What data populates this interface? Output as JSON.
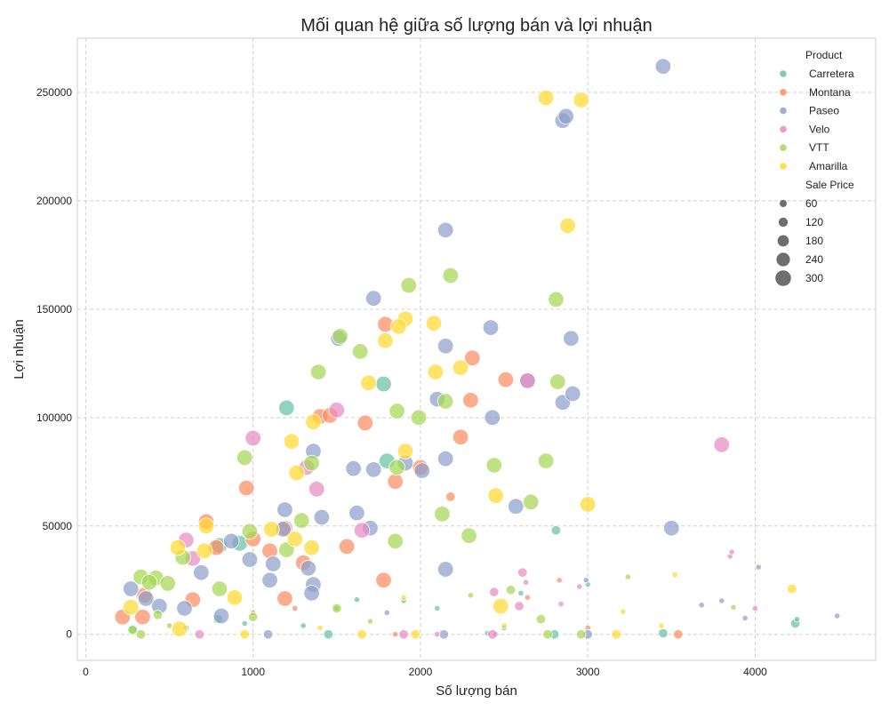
{
  "chart_data": {
    "type": "scatter",
    "title": "Mối quan hệ giữa số lượng bán và lợi nhuận",
    "xlabel": "Số lượng bán",
    "ylabel": "Lợi nhuận",
    "xlim": [
      -50,
      4720
    ],
    "ylim": [
      -12000,
      275000
    ],
    "x_ticks": [
      0,
      1000,
      2000,
      3000,
      4000
    ],
    "y_ticks": [
      0,
      50000,
      100000,
      150000,
      200000,
      250000
    ],
    "grid": true,
    "legend_position": "top-right",
    "legend": {
      "hue_title": "Product",
      "size_title": "Sale Price",
      "sizes": [
        60,
        120,
        180,
        240,
        300
      ]
    },
    "series": [
      {
        "name": "Carretera",
        "color": "#66c2a5",
        "points": [
          [
            1200,
            104500,
            300
          ],
          [
            1780,
            115500,
            300
          ],
          [
            1800,
            80000,
            300
          ],
          [
            2810,
            48000,
            125
          ],
          [
            920,
            42000,
            300
          ],
          [
            800,
            41000,
            300
          ],
          [
            790,
            7000,
            125
          ],
          [
            280,
            2500,
            125
          ],
          [
            1500,
            12000,
            20
          ],
          [
            1620,
            16000,
            20
          ],
          [
            1900,
            15500,
            20
          ],
          [
            2100,
            12000,
            20
          ],
          [
            2500,
            3000,
            20
          ],
          [
            3450,
            500,
            125
          ],
          [
            4240,
            5000,
            125
          ],
          [
            4250,
            7000,
            20
          ],
          [
            1450,
            0,
            125
          ],
          [
            2800,
            0,
            125
          ],
          [
            2400,
            500,
            20
          ],
          [
            1300,
            4000,
            20
          ],
          [
            950,
            5000,
            20
          ],
          [
            600,
            3000,
            20
          ],
          [
            2600,
            19000,
            20
          ],
          [
            3000,
            23000,
            20
          ]
        ]
      },
      {
        "name": "Montana",
        "color": "#fc8d62",
        "points": [
          [
            960,
            67500,
            300
          ],
          [
            1400,
            100500,
            300
          ],
          [
            1460,
            101000,
            300
          ],
          [
            1670,
            97500,
            300
          ],
          [
            1790,
            143000,
            300
          ],
          [
            1850,
            70500,
            300
          ],
          [
            2000,
            77000,
            300
          ],
          [
            2240,
            91000,
            300
          ],
          [
            2310,
            127500,
            300
          ],
          [
            2300,
            108000,
            300
          ],
          [
            2510,
            117500,
            300
          ],
          [
            720,
            52000,
            300
          ],
          [
            780,
            40000,
            300
          ],
          [
            1000,
            44000,
            300
          ],
          [
            1100,
            38500,
            300
          ],
          [
            1190,
            49000,
            300
          ],
          [
            1300,
            33000,
            300
          ],
          [
            1560,
            40500,
            300
          ],
          [
            1780,
            25000,
            300
          ],
          [
            1190,
            16500,
            300
          ],
          [
            220,
            8000,
            300
          ],
          [
            340,
            8000,
            300
          ],
          [
            350,
            18000,
            300
          ],
          [
            640,
            16000,
            300
          ],
          [
            3540,
            0,
            125
          ],
          [
            1850,
            0,
            20
          ],
          [
            2180,
            63500,
            125
          ],
          [
            2640,
            17000,
            20
          ],
          [
            2830,
            25000,
            20
          ],
          [
            3000,
            3000,
            20
          ],
          [
            1000,
            10000,
            20
          ],
          [
            1250,
            12000,
            20
          ]
        ]
      },
      {
        "name": "Paseo",
        "color": "#8da0cb",
        "points": [
          [
            3450,
            262000,
            300
          ],
          [
            2850,
            237000,
            300
          ],
          [
            2870,
            239000,
            300
          ],
          [
            2150,
            186500,
            300
          ],
          [
            1720,
            155000,
            300
          ],
          [
            1510,
            136500,
            300
          ],
          [
            2150,
            133000,
            300
          ],
          [
            2420,
            141500,
            300
          ],
          [
            2900,
            136500,
            300
          ],
          [
            2100,
            108500,
            300
          ],
          [
            2430,
            100000,
            300
          ],
          [
            2640,
            117000,
            300
          ],
          [
            2850,
            107000,
            300
          ],
          [
            2910,
            111000,
            300
          ],
          [
            1360,
            84500,
            300
          ],
          [
            1600,
            76500,
            300
          ],
          [
            1720,
            76000,
            300
          ],
          [
            1910,
            79000,
            300
          ],
          [
            2010,
            75500,
            300
          ],
          [
            2150,
            81000,
            300
          ],
          [
            1190,
            57500,
            300
          ],
          [
            1410,
            54000,
            300
          ],
          [
            1620,
            56000,
            300
          ],
          [
            1700,
            49000,
            300
          ],
          [
            1180,
            48500,
            300
          ],
          [
            2570,
            59000,
            300
          ],
          [
            3500,
            49000,
            300
          ],
          [
            870,
            43000,
            300
          ],
          [
            980,
            34500,
            300
          ],
          [
            1120,
            32500,
            300
          ],
          [
            1330,
            30500,
            300
          ],
          [
            1360,
            23000,
            300
          ],
          [
            690,
            28500,
            300
          ],
          [
            270,
            21000,
            300
          ],
          [
            440,
            13000,
            300
          ],
          [
            590,
            12000,
            300
          ],
          [
            810,
            8500,
            300
          ],
          [
            360,
            16500,
            300
          ],
          [
            2150,
            30000,
            300
          ],
          [
            1100,
            25000,
            300
          ],
          [
            1350,
            19000,
            300
          ],
          [
            4020,
            31000,
            20
          ],
          [
            3680,
            13500,
            20
          ],
          [
            3800,
            15500,
            20
          ],
          [
            4490,
            8500,
            20
          ],
          [
            3940,
            7500,
            20
          ],
          [
            2990,
            25000,
            20
          ],
          [
            2140,
            0,
            125
          ],
          [
            3000,
            0,
            125
          ],
          [
            1090,
            0,
            125
          ],
          [
            2450,
            0,
            20
          ],
          [
            1800,
            10000,
            20
          ]
        ]
      },
      {
        "name": "Velo",
        "color": "#e78ac3",
        "points": [
          [
            1000,
            90500,
            300
          ],
          [
            1500,
            103500,
            300
          ],
          [
            1380,
            67000,
            300
          ],
          [
            3800,
            87500,
            300
          ],
          [
            2640,
            117000,
            300
          ],
          [
            1650,
            48000,
            300
          ],
          [
            600,
            43500,
            300
          ],
          [
            640,
            35000,
            300
          ],
          [
            1320,
            77000,
            300
          ],
          [
            2610,
            28500,
            125
          ],
          [
            2440,
            19500,
            125
          ],
          [
            2590,
            13000,
            125
          ],
          [
            2430,
            0,
            125
          ],
          [
            2100,
            0,
            20
          ],
          [
            3850,
            36000,
            20
          ],
          [
            3860,
            38000,
            20
          ],
          [
            4000,
            12000,
            20
          ],
          [
            2630,
            24000,
            20
          ],
          [
            2840,
            14000,
            20
          ],
          [
            2950,
            22000,
            20
          ],
          [
            680,
            0,
            125
          ],
          [
            1900,
            0,
            125
          ]
        ]
      },
      {
        "name": "VTT",
        "color": "#a6d854",
        "points": [
          [
            1930,
            161000,
            300
          ],
          [
            2180,
            165500,
            300
          ],
          [
            2810,
            154500,
            300
          ],
          [
            1520,
            137500,
            300
          ],
          [
            1640,
            130500,
            300
          ],
          [
            1390,
            121000,
            300
          ],
          [
            2820,
            116500,
            300
          ],
          [
            2150,
            107500,
            300
          ],
          [
            1860,
            103000,
            300
          ],
          [
            1990,
            100000,
            300
          ],
          [
            950,
            81500,
            300
          ],
          [
            1350,
            79000,
            300
          ],
          [
            1860,
            77000,
            300
          ],
          [
            2440,
            78000,
            300
          ],
          [
            2750,
            80000,
            300
          ],
          [
            2660,
            61000,
            300
          ],
          [
            2130,
            55500,
            300
          ],
          [
            1290,
            52500,
            300
          ],
          [
            980,
            47500,
            300
          ],
          [
            1200,
            39000,
            300
          ],
          [
            580,
            35500,
            300
          ],
          [
            330,
            26500,
            300
          ],
          [
            420,
            26000,
            300
          ],
          [
            380,
            24000,
            300
          ],
          [
            490,
            23500,
            300
          ],
          [
            800,
            21000,
            300
          ],
          [
            1850,
            43000,
            300
          ],
          [
            2290,
            45500,
            300
          ],
          [
            2540,
            20500,
            125
          ],
          [
            2720,
            7000,
            125
          ],
          [
            1500,
            12000,
            125
          ],
          [
            1000,
            8000,
            125
          ],
          [
            430,
            9000,
            125
          ],
          [
            280,
            2000,
            125
          ],
          [
            330,
            0,
            125
          ],
          [
            2960,
            0,
            125
          ],
          [
            3240,
            26500,
            20
          ],
          [
            3870,
            12500,
            20
          ],
          [
            2760,
            0,
            125
          ],
          [
            500,
            4000,
            20
          ],
          [
            1700,
            6000,
            20
          ],
          [
            2300,
            18000,
            20
          ]
        ]
      },
      {
        "name": "Amarilla",
        "color": "#ffd92f",
        "points": [
          [
            2750,
            247500,
            300
          ],
          [
            2960,
            246500,
            300
          ],
          [
            2880,
            188500,
            300
          ],
          [
            1910,
            145500,
            300
          ],
          [
            2080,
            143500,
            300
          ],
          [
            1870,
            142000,
            300
          ],
          [
            1790,
            135500,
            300
          ],
          [
            2090,
            121000,
            300
          ],
          [
            2240,
            123000,
            300
          ],
          [
            1690,
            116000,
            300
          ],
          [
            1360,
            98000,
            300
          ],
          [
            1230,
            89000,
            300
          ],
          [
            1910,
            84500,
            300
          ],
          [
            1260,
            74500,
            300
          ],
          [
            2450,
            64000,
            300
          ],
          [
            3000,
            60000,
            300
          ],
          [
            1110,
            48500,
            300
          ],
          [
            1250,
            44000,
            300
          ],
          [
            1350,
            40000,
            300
          ],
          [
            550,
            40000,
            300
          ],
          [
            710,
            38500,
            300
          ],
          [
            720,
            50000,
            300
          ],
          [
            890,
            17000,
            300
          ],
          [
            2480,
            13000,
            300
          ],
          [
            270,
            12500,
            300
          ],
          [
            560,
            2500,
            300
          ],
          [
            1650,
            0,
            125
          ],
          [
            3170,
            0,
            125
          ],
          [
            1970,
            0,
            125
          ],
          [
            950,
            0,
            125
          ],
          [
            4220,
            21000,
            125
          ],
          [
            3520,
            27500,
            20
          ],
          [
            3210,
            10500,
            20
          ],
          [
            3440,
            4000,
            20
          ],
          [
            2500,
            4000,
            20
          ],
          [
            1400,
            3000,
            20
          ],
          [
            1900,
            17000,
            20
          ]
        ]
      }
    ]
  }
}
